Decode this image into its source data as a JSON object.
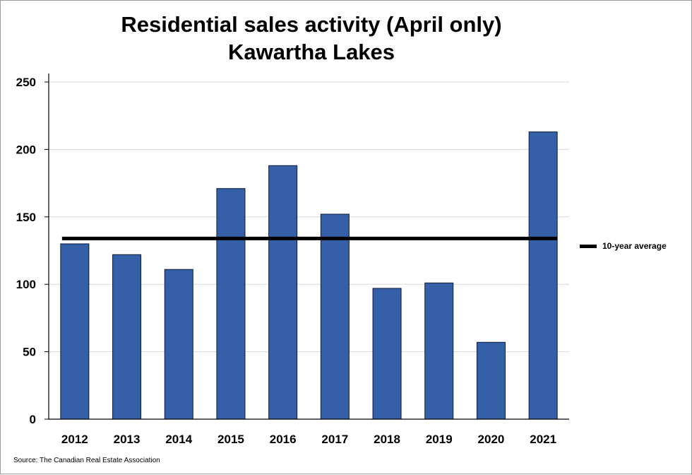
{
  "chart_data": {
    "type": "bar",
    "title": "Residential sales activity (April only)",
    "subtitle": "Kawartha Lakes",
    "categories": [
      "2012",
      "2013",
      "2014",
      "2015",
      "2016",
      "2017",
      "2018",
      "2019",
      "2020",
      "2021"
    ],
    "series": [
      {
        "values": [
          130,
          122,
          111,
          171,
          188,
          152,
          97,
          101,
          57,
          213
        ],
        "color": "#3560A8"
      }
    ],
    "reference_line": {
      "name": "10-year average",
      "value": 134,
      "color": "#000000"
    },
    "ylim": [
      0,
      250
    ],
    "yticks": [
      "0",
      "50",
      "100",
      "150",
      "200",
      "250"
    ],
    "ytick_values": [
      0,
      50,
      100,
      150,
      200,
      250
    ],
    "grid": true,
    "legend_position": "right",
    "xlabel": "",
    "ylabel": ""
  },
  "source": "Source: The Canadian Real Estate Association"
}
